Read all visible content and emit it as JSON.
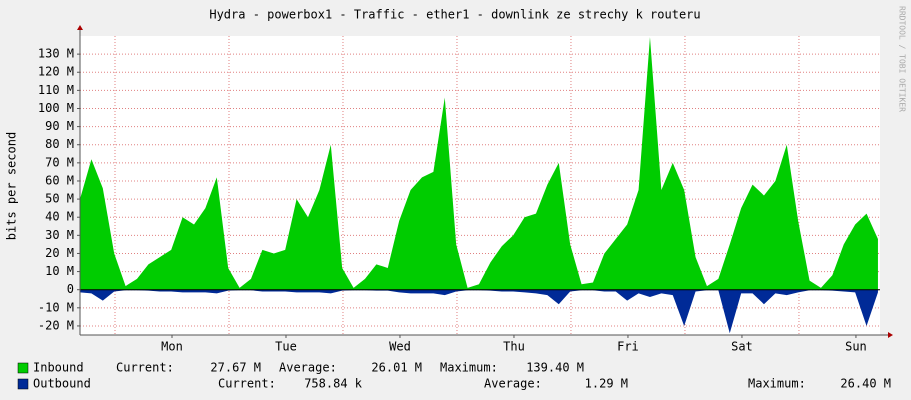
{
  "chart_data": {
    "type": "area",
    "title": "Hydra - powerbox1 - Traffic - ether1 - downlink ze strechy k routeru",
    "y_label": "bits per second",
    "watermark": "RRDTOOL / TOBI OETIKER",
    "x": [
      0.0,
      0.1,
      0.2,
      0.3,
      0.4,
      0.5,
      0.6,
      0.7,
      0.8,
      0.9,
      1.0,
      1.1,
      1.2,
      1.3,
      1.4,
      1.5,
      1.6,
      1.7,
      1.8,
      1.9,
      2.0,
      2.1,
      2.2,
      2.3,
      2.4,
      2.5,
      2.6,
      2.7,
      2.8,
      2.9,
      3.0,
      3.1,
      3.2,
      3.3,
      3.4,
      3.5,
      3.6,
      3.7,
      3.8,
      3.9,
      4.0,
      4.1,
      4.2,
      4.3,
      4.4,
      4.5,
      4.6,
      4.7,
      4.8,
      4.9,
      5.0,
      5.1,
      5.2,
      5.3,
      5.4,
      5.5,
      5.6,
      5.7,
      5.8,
      5.9,
      6.0,
      6.1,
      6.2,
      6.3,
      6.4,
      6.5,
      6.6,
      6.7,
      6.8,
      6.9,
      7.0
    ],
    "series": [
      {
        "name": "Inbound",
        "color": "#00cc00",
        "values": [
          50,
          72,
          56,
          20,
          2,
          6,
          14,
          18,
          22,
          40,
          36,
          45,
          62,
          12,
          1,
          6,
          22,
          20,
          22,
          50,
          40,
          55,
          80,
          12,
          1,
          6,
          14,
          12,
          38,
          55,
          62,
          65,
          106,
          25,
          1,
          3,
          15,
          24,
          30,
          40,
          42,
          58,
          70,
          25,
          3,
          4,
          20,
          28,
          36,
          55,
          139.4,
          55,
          70,
          55,
          18,
          2,
          6,
          25,
          45,
          58,
          52,
          60,
          80,
          38,
          5,
          1,
          8,
          25,
          36,
          42,
          28
        ],
        "stats": [
          {
            "value": 27.67,
            "label": "27.67 M"
          },
          {
            "value": 26.01,
            "label": "26.01 M"
          },
          {
            "value": 139.4,
            "label": "139.40 M"
          }
        ]
      },
      {
        "name": "Outbound",
        "color": "#002a97",
        "values": [
          -1.5,
          -2,
          -6,
          -1,
          -0.3,
          -0.3,
          -0.5,
          -1,
          -1,
          -1.5,
          -1.5,
          -1.5,
          -2,
          -0.5,
          -0.3,
          -0.3,
          -1,
          -1,
          -1,
          -1.5,
          -1.5,
          -1.5,
          -2,
          -0.5,
          -0.3,
          -0.3,
          -0.5,
          -0.5,
          -1.5,
          -2,
          -2,
          -2,
          -3,
          -1,
          -0.3,
          -0.3,
          -0.5,
          -1,
          -1,
          -1.5,
          -2,
          -3,
          -8,
          -1,
          -0.3,
          -0.3,
          -1,
          -1,
          -6,
          -2,
          -4,
          -2,
          -3,
          -20,
          -1,
          -0.3,
          -0.3,
          -24,
          -2,
          -2,
          -8,
          -2,
          -3,
          -1.5,
          -0.3,
          -0.3,
          -0.5,
          -1,
          -1.5,
          -20,
          -1.5
        ],
        "stats": [
          {
            "value": 0.75884,
            "label": "758.84 k"
          },
          {
            "value": 1.29,
            "label": "1.29 M"
          },
          {
            "value": 26.4,
            "label": "26.40 M"
          }
        ]
      }
    ],
    "stat_names": [
      "Current:",
      "Average:",
      "Maximum:"
    ],
    "xlim": [
      0,
      7.018
    ],
    "xticks": [
      {
        "value": 0.807,
        "label": "Mon"
      },
      {
        "value": 1.807,
        "label": "Tue"
      },
      {
        "value": 2.807,
        "label": "Wed"
      },
      {
        "value": 3.807,
        "label": "Thu"
      },
      {
        "value": 4.807,
        "label": "Fri"
      },
      {
        "value": 5.807,
        "label": "Sat"
      },
      {
        "value": 6.807,
        "label": "Sun"
      }
    ],
    "xgrid": [
      0.307,
      1.307,
      2.307,
      3.307,
      4.307,
      5.307,
      6.307
    ],
    "ylim": [
      -25,
      140
    ],
    "yticks": [
      {
        "value": -20,
        "label": "-20 M"
      },
      {
        "value": -10,
        "label": "-10 M"
      },
      0,
      {
        "value": 10,
        "label": "10 M"
      },
      {
        "value": 20,
        "label": "20 M"
      },
      {
        "value": 30,
        "label": "30 M"
      },
      {
        "value": 40,
        "label": "40 M"
      },
      {
        "value": 50,
        "label": "50 M"
      },
      {
        "value": 60,
        "label": "60 M"
      },
      {
        "value": 70,
        "label": "70 M"
      },
      {
        "value": 80,
        "label": "80 M"
      },
      {
        "value": 90,
        "label": "90 M"
      },
      {
        "value": 100,
        "label": "100 M"
      },
      {
        "value": 110,
        "label": "110 M"
      },
      {
        "value": 120,
        "label": "120 M"
      },
      {
        "value": 130,
        "label": "130 M"
      }
    ],
    "grid": true
  }
}
